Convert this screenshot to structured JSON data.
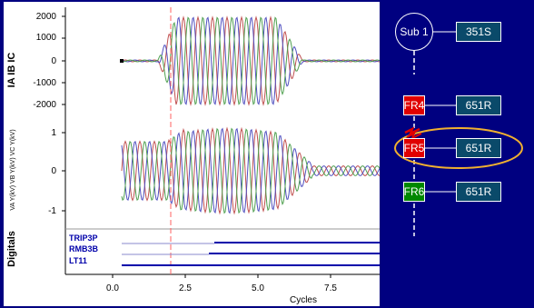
{
  "plot": {
    "current_group_label": "IA IB IC",
    "voltage_group_label": "VA Y(kV) VB Y(kV) VC Y(kV)",
    "digitals_group_label": "Digitals",
    "x_axis_label": "Cycles",
    "current_ticks": [
      "2000",
      "1000",
      "0",
      "-1000",
      "-2000"
    ],
    "voltage_ticks": [
      "1",
      "0",
      "-1"
    ],
    "x_ticks": [
      "0.0",
      "2.5",
      "5.0",
      "7.5"
    ],
    "digital_channels": [
      "TRIP3P",
      "RMB3B",
      "LT11"
    ],
    "colors": {
      "phase_a": "#c05050",
      "phase_b": "#5050c0",
      "phase_c": "#50a050",
      "digital": "#0000aa",
      "cursor": "#ff6060"
    }
  },
  "oneline": {
    "bus_label": "Sub 1",
    "bus_relay": "351S",
    "feeders": [
      {
        "breaker": "FR4",
        "relay": "651R",
        "state": "closed"
      },
      {
        "breaker": "FR5",
        "relay": "651R",
        "state": "closed"
      },
      {
        "breaker": "FR6",
        "relay": "651R",
        "state": "open"
      }
    ],
    "highlight_color": "#f0b030",
    "fault_color": "#e00000"
  }
}
